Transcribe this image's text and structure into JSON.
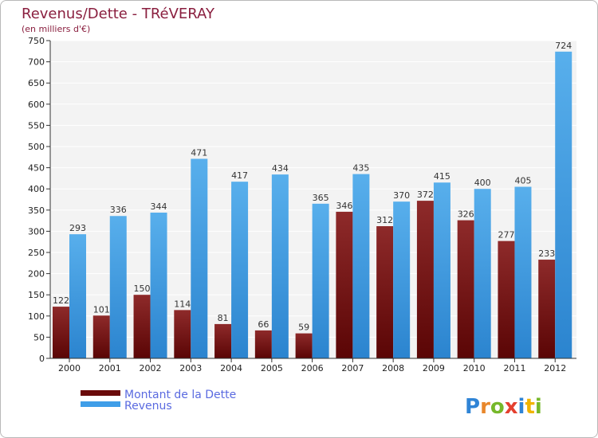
{
  "chart_data": {
    "type": "bar",
    "title": "Revenus/Dette - TRéVERAY",
    "subtitle": "(en milliers d'€)",
    "categories": [
      "2000",
      "2001",
      "2002",
      "2003",
      "2004",
      "2005",
      "2006",
      "2007",
      "2008",
      "2009",
      "2010",
      "2011",
      "2012"
    ],
    "series": [
      {
        "name": "Montant de la Dette",
        "color": "#7a1010",
        "values": [
          122,
          101,
          150,
          114,
          81,
          66,
          59,
          346,
          312,
          372,
          326,
          277,
          233
        ]
      },
      {
        "name": "Revenus",
        "color": "#4aa3e6",
        "values": [
          293,
          336,
          344,
          471,
          417,
          434,
          365,
          435,
          370,
          415,
          400,
          405,
          724
        ]
      }
    ],
    "ylim": [
      0,
      750
    ],
    "yticks": [
      0,
      50,
      100,
      150,
      200,
      250,
      300,
      350,
      400,
      450,
      500,
      550,
      600,
      650,
      700,
      750
    ],
    "grid": true,
    "legend_position": "bottom-left"
  },
  "branding": {
    "letters": [
      "P",
      "r",
      "o",
      "x",
      "i",
      "t",
      "i"
    ],
    "colors": [
      "#2f84d6",
      "#e8872b",
      "#76b82a",
      "#e4402f",
      "#2f84d6",
      "#f0b400",
      "#76b82a"
    ]
  }
}
